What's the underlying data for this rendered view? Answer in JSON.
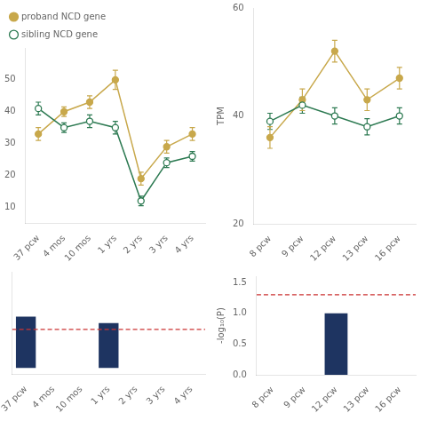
{
  "chart_data": [
    {
      "type": "line",
      "categories": [
        "37 pcw",
        "4 mos",
        "10 mos",
        "1 yrs",
        "2 yrs",
        "3 yrs",
        "4 yrs"
      ],
      "series": [
        {
          "name": "sibling NCD gene",
          "color": "#2d7a52",
          "marker": "circle_open",
          "values": [
            41,
            35,
            37,
            35,
            12,
            24,
            26
          ],
          "errors": [
            2,
            1.5,
            2,
            2,
            1.5,
            1.5,
            1.5
          ]
        },
        {
          "name": "proband NCD gene",
          "color": "#c8a84b",
          "marker": "circle",
          "values": [
            33,
            40,
            43,
            50,
            19,
            29,
            33
          ],
          "errors": [
            2,
            1.5,
            2,
            3,
            2,
            2,
            2
          ]
        }
      ],
      "ylim": [
        5,
        60
      ],
      "yticks": [
        10,
        20,
        30,
        40,
        50
      ],
      "legend": "upper left",
      "grid": false
    },
    {
      "type": "line",
      "categories": [
        "8 pcw",
        "9 pcw",
        "12 pcw",
        "13 pcw",
        "16 pcw"
      ],
      "series": [
        {
          "color": "#2d7a52",
          "marker": "circle_open",
          "values": [
            39,
            42,
            40,
            38,
            40
          ],
          "errors": [
            1.5,
            1.5,
            1.5,
            1.5,
            1.5
          ]
        },
        {
          "color": "#c8a84b",
          "marker": "circle",
          "values": [
            36,
            43,
            52,
            43,
            47
          ],
          "errors": [
            2,
            2,
            2,
            2,
            2
          ]
        }
      ],
      "ylabel": "TPM",
      "ylim": [
        20,
        60
      ],
      "yticks": [
        20,
        40,
        60
      ],
      "grid": false
    },
    {
      "type": "bar",
      "categories": [
        "37 pcw",
        "4 mos",
        "10 mos",
        "1 yrs",
        "2 yrs",
        "3 yrs",
        "4 yrs"
      ],
      "values": [
        0.08,
        0.0,
        0.0,
        0.07,
        0.0,
        0.0,
        0.0
      ],
      "color": "#1e3461",
      "reference_line": {
        "value": 0.06,
        "color": "#cc3333",
        "line_style": "dashed"
      },
      "ylim": [
        -0.01,
        0.15
      ],
      "tick_labels": "x",
      "grid": false
    },
    {
      "type": "bar",
      "categories": [
        "8 pcw",
        "9 pcw",
        "12 pcw",
        "13 pcw",
        "16 pcw"
      ],
      "values": [
        0.0,
        0.0,
        1.0,
        0.0,
        0.0
      ],
      "color": "#1e3461",
      "reference_line": {
        "value": 1.3,
        "color": "#cc3333",
        "line_style": "dashed"
      },
      "ylabel": "-log₁₀(P)",
      "ylim": [
        0,
        1.6
      ],
      "yticks": [
        {
          "value": 0,
          "label": "0.0"
        },
        0.5,
        {
          "value": 1.0,
          "label": "1.0"
        },
        1.5
      ],
      "grid": false
    }
  ]
}
